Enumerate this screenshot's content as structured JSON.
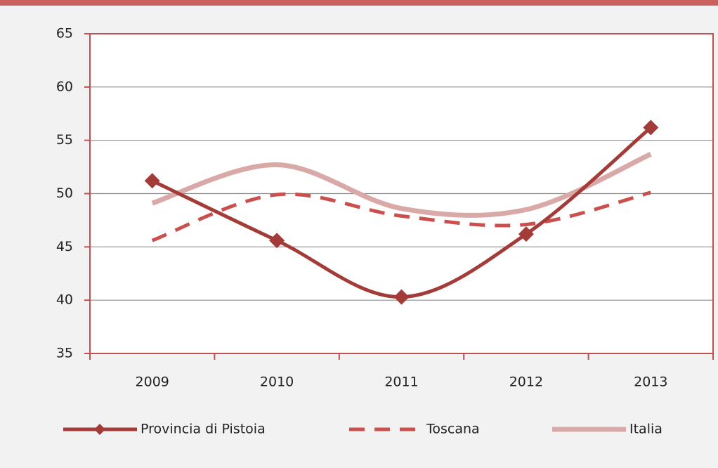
{
  "chart_data": {
    "type": "line",
    "categories": [
      "2009",
      "2010",
      "2011",
      "2012",
      "2013"
    ],
    "series": [
      {
        "name": "Provincia di Pistoia",
        "color": "#a33b38",
        "values": [
          51.2,
          45.6,
          40.3,
          46.2,
          56.2
        ]
      },
      {
        "name": "Toscana",
        "color": "#c9504c",
        "values": [
          45.6,
          49.9,
          47.9,
          47.1,
          50.1
        ]
      },
      {
        "name": "Italia",
        "color": "#d9a9a8",
        "values": [
          49.1,
          52.7,
          48.6,
          48.5,
          53.7
        ]
      }
    ],
    "ylim": [
      35,
      65
    ],
    "yticks": [
      35,
      40,
      45,
      50,
      55,
      60,
      65
    ],
    "grid": true,
    "legend": "bottom"
  }
}
